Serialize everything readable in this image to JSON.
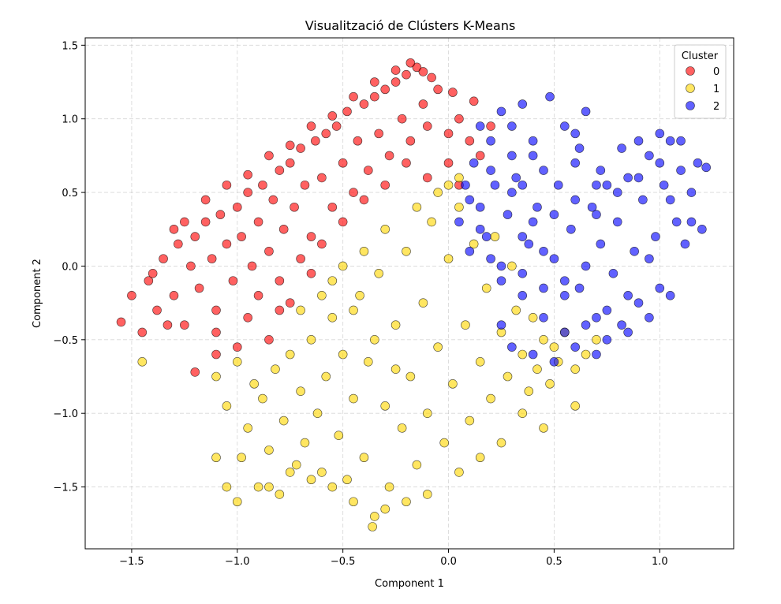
{
  "chart_data": {
    "type": "scatter",
    "title": "Visualització de Clústers K-Means",
    "xlabel": "Component 1",
    "ylabel": "Component 2",
    "xlim": [
      -1.72,
      1.35
    ],
    "ylim": [
      -1.92,
      1.55
    ],
    "xticks": [
      -1.5,
      -1.0,
      -0.5,
      0.0,
      0.5,
      1.0
    ],
    "xtick_labels": [
      "−1.5",
      "−1.0",
      "−0.5",
      "0.0",
      "0.5",
      "1.0"
    ],
    "yticks": [
      -1.5,
      -1.0,
      -0.5,
      0.0,
      0.5,
      1.0,
      1.5
    ],
    "ytick_labels": [
      "−1.5",
      "−1.0",
      "−0.5",
      "0.0",
      "0.5",
      "1.0",
      "1.5"
    ],
    "grid": true,
    "legend": {
      "title": "Cluster",
      "placement": "top-right"
    },
    "series": [
      {
        "name": "0",
        "color": "#ff0000",
        "points": [
          [
            -1.55,
            -0.38
          ],
          [
            -1.5,
            -0.2
          ],
          [
            -1.45,
            -0.45
          ],
          [
            -1.42,
            -0.1
          ],
          [
            -1.38,
            -0.3
          ],
          [
            -1.35,
            0.05
          ],
          [
            -1.3,
            -0.2
          ],
          [
            -1.28,
            0.15
          ],
          [
            -1.25,
            -0.4
          ],
          [
            -1.22,
            0.0
          ],
          [
            -1.2,
            0.2
          ],
          [
            -1.18,
            -0.15
          ],
          [
            -1.15,
            0.3
          ],
          [
            -1.12,
            0.05
          ],
          [
            -1.1,
            -0.3
          ],
          [
            -1.08,
            0.35
          ],
          [
            -1.05,
            0.15
          ],
          [
            -1.02,
            -0.1
          ],
          [
            -1.0,
            0.4
          ],
          [
            -0.98,
            0.2
          ],
          [
            -0.95,
            0.5
          ],
          [
            -0.93,
            0.0
          ],
          [
            -0.9,
            0.3
          ],
          [
            -0.88,
            0.55
          ],
          [
            -0.85,
            0.1
          ],
          [
            -0.83,
            0.45
          ],
          [
            -0.8,
            0.65
          ],
          [
            -0.78,
            0.25
          ],
          [
            -0.75,
            0.7
          ],
          [
            -0.73,
            0.4
          ],
          [
            -0.7,
            0.8
          ],
          [
            -0.68,
            0.55
          ],
          [
            -0.65,
            0.2
          ],
          [
            -0.63,
            0.85
          ],
          [
            -0.6,
            0.6
          ],
          [
            -0.58,
            0.9
          ],
          [
            -0.55,
            0.4
          ],
          [
            -0.53,
            0.95
          ],
          [
            -0.5,
            0.7
          ],
          [
            -0.48,
            1.05
          ],
          [
            -0.45,
            0.5
          ],
          [
            -0.43,
            0.85
          ],
          [
            -0.4,
            1.1
          ],
          [
            -0.38,
            0.65
          ],
          [
            -0.35,
            1.15
          ],
          [
            -0.33,
            0.9
          ],
          [
            -0.3,
            1.2
          ],
          [
            -0.28,
            0.75
          ],
          [
            -0.25,
            1.25
          ],
          [
            -0.22,
            1.0
          ],
          [
            -0.2,
            1.3
          ],
          [
            -0.18,
            0.85
          ],
          [
            -0.15,
            1.35
          ],
          [
            -0.12,
            1.1
          ],
          [
            -0.1,
            0.95
          ],
          [
            -0.05,
            1.2
          ],
          [
            0.0,
            0.9
          ],
          [
            0.05,
            1.0
          ],
          [
            0.1,
            0.85
          ],
          [
            0.15,
            0.75
          ],
          [
            -1.1,
            -0.45
          ],
          [
            -0.95,
            -0.35
          ],
          [
            -0.9,
            -0.2
          ],
          [
            -0.8,
            -0.1
          ],
          [
            -0.7,
            0.05
          ],
          [
            -0.6,
            0.15
          ],
          [
            -0.5,
            0.3
          ],
          [
            -0.4,
            0.45
          ],
          [
            -0.3,
            0.55
          ],
          [
            -0.2,
            0.7
          ],
          [
            -0.1,
            0.6
          ],
          [
            0.0,
            0.7
          ],
          [
            0.05,
            0.55
          ],
          [
            -0.8,
            -0.3
          ],
          [
            -0.75,
            -0.25
          ],
          [
            -1.2,
            -0.72
          ],
          [
            -1.1,
            -0.6
          ],
          [
            -1.0,
            -0.55
          ],
          [
            -0.85,
            -0.5
          ],
          [
            -0.65,
            -0.05
          ],
          [
            -1.3,
            0.25
          ],
          [
            -1.25,
            0.3
          ],
          [
            -1.15,
            0.45
          ],
          [
            -1.05,
            0.55
          ],
          [
            -0.95,
            0.62
          ],
          [
            -0.85,
            0.75
          ],
          [
            -0.75,
            0.82
          ],
          [
            -0.65,
            0.95
          ],
          [
            -0.55,
            1.02
          ],
          [
            -0.45,
            1.15
          ],
          [
            -0.35,
            1.25
          ],
          [
            -0.25,
            1.33
          ],
          [
            -0.18,
            1.38
          ],
          [
            -0.12,
            1.32
          ],
          [
            -0.08,
            1.28
          ],
          [
            0.02,
            1.18
          ],
          [
            0.12,
            1.12
          ],
          [
            0.2,
            0.95
          ],
          [
            -1.4,
            -0.05
          ],
          [
            -1.33,
            -0.4
          ]
        ]
      },
      {
        "name": "1",
        "color": "#ffd700",
        "points": [
          [
            -1.45,
            -0.65
          ],
          [
            -1.1,
            -0.75
          ],
          [
            -1.05,
            -0.95
          ],
          [
            -1.0,
            -0.65
          ],
          [
            -0.98,
            -1.3
          ],
          [
            -0.95,
            -1.1
          ],
          [
            -0.92,
            -0.8
          ],
          [
            -0.9,
            -1.5
          ],
          [
            -0.88,
            -0.9
          ],
          [
            -0.85,
            -1.25
          ],
          [
            -0.82,
            -0.7
          ],
          [
            -0.8,
            -1.55
          ],
          [
            -0.78,
            -1.05
          ],
          [
            -0.75,
            -0.6
          ],
          [
            -0.72,
            -1.35
          ],
          [
            -0.7,
            -0.85
          ],
          [
            -0.68,
            -1.2
          ],
          [
            -0.65,
            -0.5
          ],
          [
            -0.62,
            -1.0
          ],
          [
            -0.6,
            -1.4
          ],
          [
            -0.58,
            -0.75
          ],
          [
            -0.55,
            -0.35
          ],
          [
            -0.52,
            -1.15
          ],
          [
            -0.5,
            -0.6
          ],
          [
            -0.48,
            -1.45
          ],
          [
            -0.45,
            -0.9
          ],
          [
            -0.42,
            -0.2
          ],
          [
            -0.4,
            -1.3
          ],
          [
            -0.38,
            -0.65
          ],
          [
            -0.35,
            -1.7
          ],
          [
            -0.33,
            -0.05
          ],
          [
            -0.3,
            -0.95
          ],
          [
            -0.28,
            -1.5
          ],
          [
            -0.25,
            -0.4
          ],
          [
            -0.22,
            -1.1
          ],
          [
            -0.2,
            0.1
          ],
          [
            -0.18,
            -0.75
          ],
          [
            -0.15,
            -1.35
          ],
          [
            -0.12,
            -0.25
          ],
          [
            -0.1,
            -1.0
          ],
          [
            -0.08,
            0.3
          ],
          [
            -0.05,
            -0.55
          ],
          [
            -0.02,
            -1.2
          ],
          [
            0.0,
            0.05
          ],
          [
            0.02,
            -0.8
          ],
          [
            0.05,
            0.4
          ],
          [
            0.08,
            -0.4
          ],
          [
            0.1,
            -1.05
          ],
          [
            0.12,
            0.15
          ],
          [
            0.15,
            -0.65
          ],
          [
            0.18,
            -0.15
          ],
          [
            0.2,
            -0.9
          ],
          [
            0.22,
            0.2
          ],
          [
            0.25,
            -0.45
          ],
          [
            0.28,
            -0.75
          ],
          [
            0.3,
            0.0
          ],
          [
            0.32,
            -0.3
          ],
          [
            0.35,
            -0.6
          ],
          [
            0.38,
            -0.85
          ],
          [
            0.4,
            -0.35
          ],
          [
            0.42,
            -0.7
          ],
          [
            0.45,
            -0.5
          ],
          [
            0.48,
            -0.8
          ],
          [
            0.5,
            -0.55
          ],
          [
            0.52,
            -0.65
          ],
          [
            0.55,
            -0.45
          ],
          [
            0.6,
            -0.7
          ],
          [
            0.65,
            -0.6
          ],
          [
            0.7,
            -0.5
          ],
          [
            0.45,
            -1.1
          ],
          [
            0.35,
            -1.0
          ],
          [
            0.25,
            -1.2
          ],
          [
            0.15,
            -1.3
          ],
          [
            0.05,
            -1.4
          ],
          [
            -0.1,
            -1.55
          ],
          [
            -0.2,
            -1.6
          ],
          [
            -0.3,
            -1.65
          ],
          [
            -0.36,
            -1.77
          ],
          [
            -0.45,
            -1.6
          ],
          [
            -0.55,
            -1.5
          ],
          [
            -0.65,
            -1.45
          ],
          [
            -0.75,
            -1.4
          ],
          [
            -0.85,
            -1.5
          ],
          [
            -1.0,
            -1.6
          ],
          [
            -1.05,
            -1.5
          ],
          [
            -1.1,
            -1.3
          ],
          [
            -0.7,
            -0.3
          ],
          [
            -0.6,
            -0.2
          ],
          [
            -0.5,
            0.0
          ],
          [
            -0.4,
            0.1
          ],
          [
            -0.3,
            0.25
          ],
          [
            -0.15,
            0.4
          ],
          [
            -0.05,
            0.5
          ],
          [
            0.0,
            0.55
          ],
          [
            0.05,
            0.6
          ],
          [
            -0.55,
            -0.1
          ],
          [
            -0.45,
            -0.3
          ],
          [
            -0.35,
            -0.5
          ],
          [
            -0.25,
            -0.7
          ],
          [
            0.6,
            -0.95
          ]
        ]
      },
      {
        "name": "2",
        "color": "#0000ff",
        "points": [
          [
            0.05,
            0.3
          ],
          [
            0.08,
            0.55
          ],
          [
            0.1,
            0.1
          ],
          [
            0.12,
            0.7
          ],
          [
            0.15,
            0.4
          ],
          [
            0.18,
            0.2
          ],
          [
            0.2,
            0.85
          ],
          [
            0.22,
            0.55
          ],
          [
            0.25,
            0.0
          ],
          [
            0.28,
            0.35
          ],
          [
            0.3,
            0.95
          ],
          [
            0.32,
            0.6
          ],
          [
            0.35,
            -0.2
          ],
          [
            0.38,
            0.15
          ],
          [
            0.4,
            0.75
          ],
          [
            0.42,
            0.4
          ],
          [
            0.45,
            -0.35
          ],
          [
            0.48,
            1.15
          ],
          [
            0.5,
            0.05
          ],
          [
            0.52,
            0.55
          ],
          [
            0.55,
            -0.45
          ],
          [
            0.58,
            0.25
          ],
          [
            0.6,
            0.7
          ],
          [
            0.62,
            -0.15
          ],
          [
            0.65,
            1.05
          ],
          [
            0.68,
            0.4
          ],
          [
            0.7,
            -0.35
          ],
          [
            0.72,
            0.15
          ],
          [
            0.75,
            0.55
          ],
          [
            0.78,
            -0.05
          ],
          [
            0.8,
            0.3
          ],
          [
            0.82,
            -0.4
          ],
          [
            0.85,
            0.6
          ],
          [
            0.88,
            0.1
          ],
          [
            0.9,
            -0.25
          ],
          [
            0.92,
            0.45
          ],
          [
            0.95,
            0.75
          ],
          [
            0.98,
            0.2
          ],
          [
            1.0,
            -0.15
          ],
          [
            1.02,
            0.55
          ],
          [
            1.05,
            0.85
          ],
          [
            1.08,
            0.3
          ],
          [
            1.1,
            0.65
          ],
          [
            1.12,
            0.15
          ],
          [
            1.15,
            0.5
          ],
          [
            1.18,
            0.7
          ],
          [
            1.2,
            0.25
          ],
          [
            1.22,
            0.67
          ],
          [
            0.3,
            -0.55
          ],
          [
            0.25,
            -0.4
          ],
          [
            0.4,
            -0.6
          ],
          [
            0.5,
            -0.65
          ],
          [
            0.6,
            -0.55
          ],
          [
            0.7,
            -0.6
          ],
          [
            0.75,
            -0.5
          ],
          [
            0.85,
            -0.45
          ],
          [
            0.95,
            -0.35
          ],
          [
            1.05,
            -0.2
          ],
          [
            0.35,
            0.55
          ],
          [
            0.45,
            0.65
          ],
          [
            0.55,
            0.95
          ],
          [
            0.6,
            0.9
          ],
          [
            0.62,
            0.8
          ],
          [
            0.72,
            0.65
          ],
          [
            0.82,
            0.8
          ],
          [
            0.9,
            0.85
          ],
          [
            1.0,
            0.9
          ],
          [
            1.1,
            0.85
          ],
          [
            0.15,
            0.95
          ],
          [
            0.25,
            1.05
          ],
          [
            0.35,
            1.1
          ],
          [
            0.7,
            0.35
          ],
          [
            0.65,
            0.0
          ],
          [
            0.55,
            -0.2
          ],
          [
            0.45,
            0.1
          ],
          [
            0.35,
            0.2
          ],
          [
            0.25,
            -0.1
          ],
          [
            0.3,
            0.5
          ],
          [
            0.4,
            0.3
          ],
          [
            0.5,
            0.35
          ],
          [
            0.6,
            0.45
          ],
          [
            0.7,
            0.55
          ],
          [
            0.8,
            0.5
          ],
          [
            0.9,
            0.6
          ],
          [
            1.0,
            0.7
          ],
          [
            1.05,
            0.45
          ],
          [
            0.95,
            0.05
          ],
          [
            0.85,
            -0.2
          ],
          [
            0.75,
            -0.3
          ],
          [
            0.65,
            -0.4
          ],
          [
            0.55,
            -0.1
          ],
          [
            0.45,
            -0.15
          ],
          [
            0.35,
            -0.05
          ],
          [
            0.2,
            0.05
          ],
          [
            0.15,
            0.25
          ],
          [
            0.1,
            0.45
          ],
          [
            0.2,
            0.65
          ],
          [
            0.3,
            0.75
          ],
          [
            0.4,
            0.85
          ],
          [
            1.15,
            0.3
          ]
        ]
      }
    ]
  }
}
